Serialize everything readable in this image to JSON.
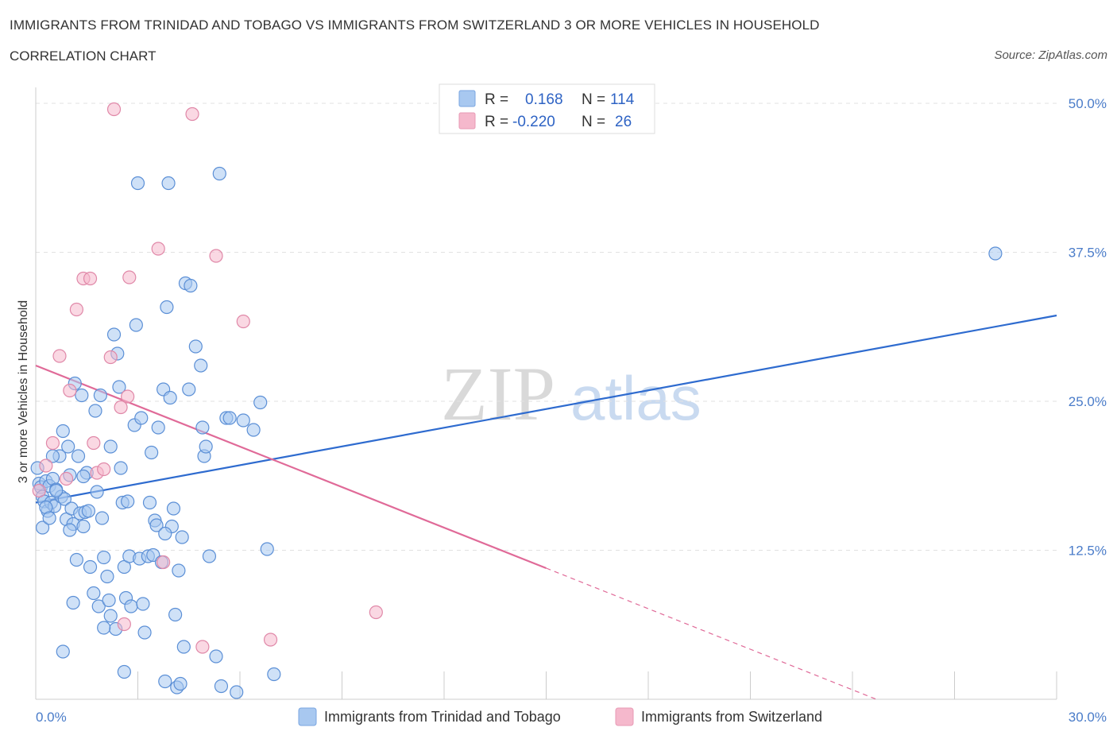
{
  "title": "IMMIGRANTS FROM TRINIDAD AND TOBAGO VS IMMIGRANTS FROM SWITZERLAND 3 OR MORE VEHICLES IN HOUSEHOLD",
  "subtitle": "CORRELATION CHART",
  "source": "Source: ZipAtlas.com",
  "watermark": {
    "zip": "ZIP",
    "atlas": "atlas"
  },
  "legend": {
    "rows": [
      {
        "r_label": "R =",
        "r_value": "0.168",
        "n_label": "N =",
        "n_value": "114",
        "color": "#a8c8f0"
      },
      {
        "r_label": "R =",
        "r_value": "-0.220",
        "n_label": "N =",
        "n_value": "26",
        "color": "#f5b8cc"
      }
    ]
  },
  "bottom_legend": [
    {
      "label": "Immigrants from Trinidad and Tobago",
      "color": "#a8c8f0"
    },
    {
      "label": "Immigrants from Switzerland",
      "color": "#f5b8cc"
    }
  ],
  "chart_data": {
    "type": "scatter",
    "title": "IMMIGRANTS FROM TRINIDAD AND TOBAGO VS IMMIGRANTS FROM SWITZERLAND 3 OR MORE VEHICLES IN HOUSEHOLD",
    "xlabel": "",
    "ylabel": "3 or more Vehicles in Household",
    "xlim": [
      0,
      30
    ],
    "ylim": [
      0,
      52
    ],
    "x_tick_labels": [
      "0.0%",
      "30.0%"
    ],
    "y_ticks": [
      12.5,
      25.0,
      37.5,
      50.0
    ],
    "y_tick_labels": [
      "12.5%",
      "25.0%",
      "37.5%",
      "50.0%"
    ],
    "grid": true,
    "series": [
      {
        "name": "Immigrants from Trinidad and Tobago",
        "color": "#a8c8f0",
        "stroke": "#5b8fd6",
        "trend": {
          "x0": 0,
          "y0": 16.5,
          "x1": 30,
          "y1": 32.2,
          "color": "#2e6bcf"
        },
        "points": [
          [
            0.05,
            19.4
          ],
          [
            0.1,
            18.1
          ],
          [
            0.15,
            17.8
          ],
          [
            0.2,
            17.0
          ],
          [
            0.25,
            16.6
          ],
          [
            0.3,
            18.3
          ],
          [
            0.35,
            15.8
          ],
          [
            0.4,
            17.9
          ],
          [
            0.45,
            16.5
          ],
          [
            0.5,
            18.5
          ],
          [
            0.55,
            16.2
          ],
          [
            0.6,
            17.6
          ],
          [
            0.7,
            20.4
          ],
          [
            0.75,
            17.0
          ],
          [
            0.8,
            22.5
          ],
          [
            0.85,
            16.8
          ],
          [
            0.9,
            15.1
          ],
          [
            0.95,
            21.2
          ],
          [
            1.0,
            18.8
          ],
          [
            1.05,
            16.0
          ],
          [
            1.1,
            14.7
          ],
          [
            1.15,
            26.5
          ],
          [
            1.2,
            11.7
          ],
          [
            1.25,
            20.4
          ],
          [
            1.3,
            15.6
          ],
          [
            1.35,
            25.5
          ],
          [
            1.4,
            14.5
          ],
          [
            1.45,
            15.7
          ],
          [
            1.5,
            19.0
          ],
          [
            1.55,
            15.8
          ],
          [
            1.6,
            11.1
          ],
          [
            1.7,
            8.9
          ],
          [
            1.75,
            24.2
          ],
          [
            1.8,
            17.4
          ],
          [
            1.85,
            7.8
          ],
          [
            1.9,
            25.5
          ],
          [
            1.95,
            15.2
          ],
          [
            2.0,
            11.9
          ],
          [
            2.1,
            10.3
          ],
          [
            2.15,
            8.3
          ],
          [
            2.2,
            7.0
          ],
          [
            2.3,
            30.6
          ],
          [
            2.35,
            5.9
          ],
          [
            2.4,
            29.0
          ],
          [
            2.45,
            26.2
          ],
          [
            2.5,
            19.4
          ],
          [
            2.55,
            16.5
          ],
          [
            2.6,
            11.1
          ],
          [
            2.65,
            8.5
          ],
          [
            2.7,
            16.6
          ],
          [
            2.75,
            12.0
          ],
          [
            2.8,
            7.8
          ],
          [
            2.9,
            23.0
          ],
          [
            2.95,
            31.4
          ],
          [
            3.0,
            43.3
          ],
          [
            3.05,
            11.8
          ],
          [
            3.1,
            23.6
          ],
          [
            3.15,
            8.0
          ],
          [
            3.2,
            5.6
          ],
          [
            3.3,
            12.0
          ],
          [
            3.35,
            16.5
          ],
          [
            3.4,
            20.7
          ],
          [
            3.45,
            12.1
          ],
          [
            3.5,
            15.0
          ],
          [
            3.55,
            14.6
          ],
          [
            3.6,
            22.8
          ],
          [
            3.7,
            11.5
          ],
          [
            3.75,
            26.0
          ],
          [
            3.8,
            1.5
          ],
          [
            3.85,
            32.9
          ],
          [
            3.9,
            43.3
          ],
          [
            3.95,
            25.3
          ],
          [
            4.0,
            14.5
          ],
          [
            4.05,
            16.0
          ],
          [
            4.1,
            7.1
          ],
          [
            4.15,
            1.0
          ],
          [
            4.2,
            10.8
          ],
          [
            4.25,
            1.3
          ],
          [
            4.3,
            13.6
          ],
          [
            4.35,
            4.4
          ],
          [
            4.4,
            34.9
          ],
          [
            4.5,
            26.0
          ],
          [
            4.55,
            34.7
          ],
          [
            4.7,
            29.6
          ],
          [
            4.85,
            28.0
          ],
          [
            4.9,
            22.8
          ],
          [
            4.95,
            20.4
          ],
          [
            5.0,
            21.2
          ],
          [
            5.1,
            12.0
          ],
          [
            5.3,
            3.6
          ],
          [
            5.4,
            44.1
          ],
          [
            5.45,
            1.1
          ],
          [
            5.6,
            23.6
          ],
          [
            5.7,
            23.6
          ],
          [
            5.9,
            0.6
          ],
          [
            6.1,
            23.4
          ],
          [
            6.4,
            22.6
          ],
          [
            6.6,
            24.9
          ],
          [
            6.8,
            12.6
          ],
          [
            7.0,
            2.1
          ],
          [
            0.3,
            16.1
          ],
          [
            0.6,
            17.5
          ],
          [
            1.0,
            14.2
          ],
          [
            1.4,
            18.7
          ],
          [
            0.2,
            14.4
          ],
          [
            2.0,
            6.0
          ],
          [
            0.8,
            4.0
          ],
          [
            2.6,
            2.3
          ],
          [
            1.1,
            8.1
          ],
          [
            28.2,
            37.4
          ],
          [
            0.5,
            20.4
          ],
          [
            0.4,
            15.2
          ],
          [
            3.8,
            13.9
          ],
          [
            2.2,
            21.2
          ]
        ]
      },
      {
        "name": "Immigrants from Switzerland",
        "color": "#f5b8cc",
        "stroke": "#e088a8",
        "trend": {
          "x0": 0,
          "y0": 28.0,
          "x1": 15,
          "y1": 11.0,
          "dash_to_x": 24.7,
          "dash_to_y": 0.0,
          "color": "#e06a98"
        },
        "points": [
          [
            0.1,
            17.5
          ],
          [
            0.3,
            19.6
          ],
          [
            0.5,
            21.5
          ],
          [
            0.7,
            28.8
          ],
          [
            0.9,
            18.5
          ],
          [
            1.0,
            25.9
          ],
          [
            1.2,
            32.7
          ],
          [
            1.4,
            35.3
          ],
          [
            1.6,
            35.3
          ],
          [
            1.7,
            21.5
          ],
          [
            1.8,
            19.0
          ],
          [
            2.0,
            19.3
          ],
          [
            2.2,
            28.7
          ],
          [
            2.3,
            49.5
          ],
          [
            2.5,
            24.5
          ],
          [
            2.6,
            6.3
          ],
          [
            2.7,
            25.4
          ],
          [
            2.75,
            35.4
          ],
          [
            3.6,
            37.8
          ],
          [
            3.75,
            11.5
          ],
          [
            4.6,
            49.1
          ],
          [
            4.9,
            4.4
          ],
          [
            5.3,
            37.2
          ],
          [
            6.1,
            31.7
          ],
          [
            6.9,
            5.0
          ],
          [
            10.0,
            7.3
          ]
        ]
      }
    ]
  }
}
